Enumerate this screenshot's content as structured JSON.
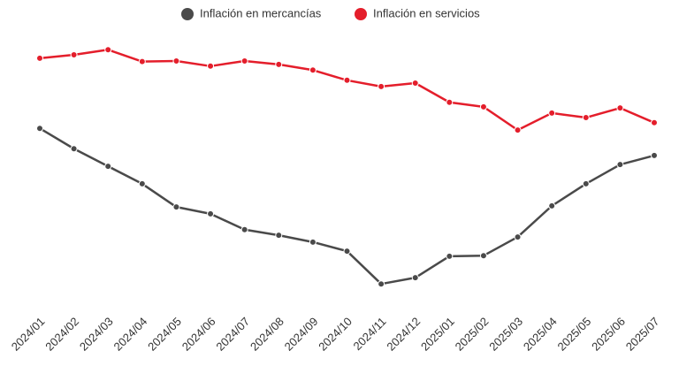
{
  "chart_data": {
    "type": "line",
    "categories": [
      "2024/01",
      "2024/02",
      "2024/03",
      "2024/04",
      "2024/05",
      "2024/06",
      "2024/07",
      "2024/08",
      "2024/09",
      "2024/10",
      "2024/11",
      "2024/12",
      "2025/01",
      "2025/02",
      "2025/03",
      "2025/04",
      "2025/05",
      "2025/06",
      "2025/07"
    ],
    "series": [
      {
        "name": "Inflación en mercancías",
        "color": "#4a4a4a",
        "values": [
          4.2,
          3.84,
          3.53,
          3.22,
          2.81,
          2.69,
          2.41,
          2.31,
          2.19,
          2.03,
          1.45,
          1.56,
          1.94,
          1.95,
          2.28,
          2.83,
          3.22,
          3.56,
          3.72
        ]
      },
      {
        "name": "Inflación en servicios",
        "color": "#e41e2b",
        "values": [
          5.44,
          5.5,
          5.59,
          5.38,
          5.39,
          5.3,
          5.39,
          5.33,
          5.23,
          5.05,
          4.94,
          5.0,
          4.66,
          4.58,
          4.17,
          4.47,
          4.39,
          4.56,
          4.3
        ]
      }
    ],
    "ylim": [
      1,
      6
    ]
  }
}
